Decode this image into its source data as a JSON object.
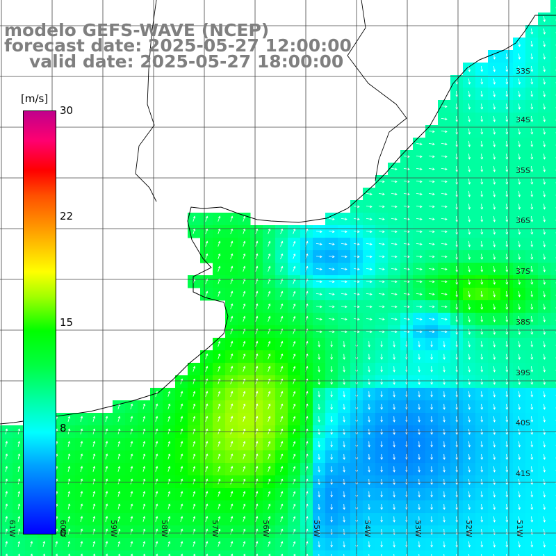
{
  "title": {
    "model": "modelo GEFS-WAVE (NCEP)",
    "forecast": "forecast date: 2025-05-27 12:00:00",
    "valid": "valid date: 2025-05-27 18:00:00"
  },
  "colorbar": {
    "units": "[m/s]",
    "ticks": [
      "30",
      "22",
      "15",
      "8",
      "0"
    ],
    "range": [
      0,
      30
    ],
    "colors": [
      "#0000ff",
      "#00ffff",
      "#00ff00",
      "#ffff00",
      "#ff8800",
      "#ff0000",
      "#c0008c"
    ]
  },
  "longitude_labels": [
    "61W",
    "60W",
    "59W",
    "58W",
    "57W",
    "56W",
    "55W",
    "54W",
    "53W",
    "52W",
    "51W"
  ],
  "latitude_labels": [
    "33S",
    "34S",
    "35S",
    "36S",
    "37S",
    "38S",
    "39S",
    "40S",
    "41S"
  ],
  "colors": {
    "land": "#ffffff",
    "coastline": "#000000",
    "grid": "#444444",
    "arrows": "#ffffff",
    "title": "#7f7f7f"
  }
}
